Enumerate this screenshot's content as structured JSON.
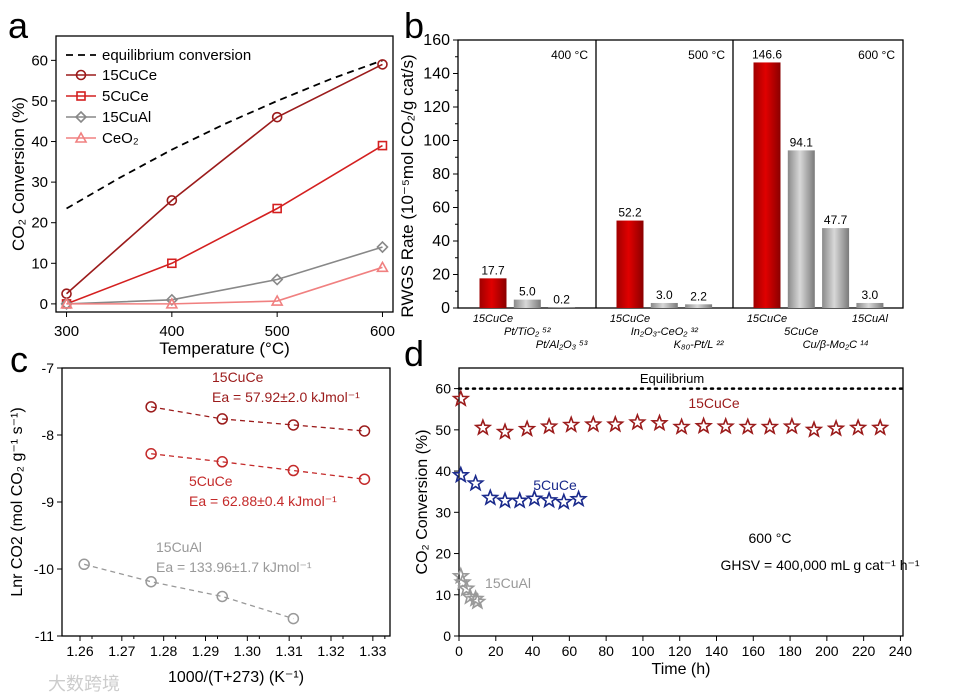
{
  "colors": {
    "dark_red": "#9b1b1b",
    "red": "#d42020",
    "gray": "#888888",
    "pink": "#f08080",
    "blue": "#1a2a8c",
    "black": "#000000"
  },
  "watermark": "大数跨境",
  "chart_data": [
    {
      "panel": "a",
      "type": "line",
      "xlabel": "Temperature (°C)",
      "ylabel": "CO₂ Conversion (%)",
      "xlim": [
        290,
        610
      ],
      "ylim": [
        -2,
        66
      ],
      "xticks": [
        300,
        400,
        500,
        600
      ],
      "yticks": [
        0,
        10,
        20,
        30,
        40,
        50,
        60
      ],
      "legend_position": "top-left",
      "equilibrium": {
        "name": "equilibrium conversion",
        "x": [
          300,
          350,
          400,
          450,
          500,
          550,
          600
        ],
        "y": [
          23.5,
          31,
          38,
          44.3,
          50,
          55.3,
          60
        ]
      },
      "series": [
        {
          "name": "15CuCe",
          "marker": "circle",
          "color": "#9b1b1b",
          "x": [
            300,
            400,
            500,
            600
          ],
          "y": [
            2.5,
            25.5,
            46,
            59
          ]
        },
        {
          "name": "5CuCe",
          "marker": "square",
          "color": "#d42020",
          "x": [
            300,
            400,
            500,
            600
          ],
          "y": [
            0,
            10,
            23.5,
            39
          ]
        },
        {
          "name": "15CuAl",
          "marker": "diamond",
          "color": "#888888",
          "x": [
            300,
            400,
            500,
            600
          ],
          "y": [
            0,
            1,
            6,
            14
          ]
        },
        {
          "name": "CeO₂",
          "marker": "triangle",
          "color": "#f08080",
          "x": [
            300,
            400,
            500,
            600
          ],
          "y": [
            0,
            0,
            0.7,
            9
          ]
        }
      ]
    },
    {
      "panel": "b",
      "type": "bar",
      "ylabel": "RWGS Rate (10⁻⁵mol CO₂/g cat/s)",
      "ylim": [
        0,
        160
      ],
      "yticks": [
        0,
        20,
        40,
        60,
        80,
        100,
        120,
        140,
        160
      ],
      "groups": [
        {
          "label": "400 °C",
          "bars": [
            {
              "category": "15CuCe",
              "value": 17.7,
              "label": "17.7",
              "highlight": true
            },
            {
              "category": "Pt/TiO₂ ⁵²",
              "value": 5.0,
              "label": "5.0",
              "highlight": false
            },
            {
              "category": "Pt/Al₂O₃ ⁵³",
              "value": 0.2,
              "label": "0.2",
              "highlight": false
            }
          ]
        },
        {
          "label": "500 °C",
          "bars": [
            {
              "category": "15CuCe",
              "value": 52.2,
              "label": "52.2",
              "highlight": true
            },
            {
              "category": "In₂O₃-CeO₂ ³²",
              "value": 3.0,
              "label": "3.0",
              "highlight": false
            },
            {
              "category": "K₈₀-Pt/L ²²",
              "value": 2.2,
              "label": "2.2",
              "highlight": false
            }
          ]
        },
        {
          "label": "600 °C",
          "bars": [
            {
              "category": "15CuCe",
              "value": 146.6,
              "label": "146.6",
              "highlight": true
            },
            {
              "category": "5CuCe",
              "value": 94.1,
              "label": "94.1",
              "highlight": false
            },
            {
              "category": "Cu/β-Mo₂C ¹⁴",
              "value": 47.7,
              "label": "47.7",
              "highlight": false
            },
            {
              "category": "15CuAl",
              "value": 3.0,
              "label": "3.0",
              "highlight": false
            }
          ]
        }
      ]
    },
    {
      "panel": "c",
      "type": "scatter",
      "xlabel": "1000/(T+273) (K⁻¹)",
      "ylabel": "Lnr CO2 (mol CO₂ g⁻¹ s⁻¹)",
      "xlim": [
        1.2557,
        1.3341
      ],
      "ylim": [
        -11,
        -7
      ],
      "xticks": [
        "1.26",
        "1.27",
        "1.28",
        "1.29",
        "1.30",
        "1.31",
        "1.32",
        "1.33"
      ],
      "yticks": [
        -7,
        -8,
        -9,
        -10,
        -11
      ],
      "series": [
        {
          "name": "15CuCe",
          "annotation": "Ea = 57.92±2.0 kJmol⁻¹",
          "color": "#9b1b1b",
          "x": [
            1.277,
            1.294,
            1.311,
            1.328
          ],
          "y": [
            -7.58,
            -7.76,
            -7.85,
            -7.94
          ]
        },
        {
          "name": "5CuCe",
          "annotation": "Ea = 62.88±0.4 kJmol⁻¹",
          "color": "#c42a2a",
          "x": [
            1.277,
            1.294,
            1.311,
            1.328
          ],
          "y": [
            -8.28,
            -8.4,
            -8.53,
            -8.66
          ]
        },
        {
          "name": "15CuAl",
          "annotation": "Ea = 133.96±1.7 kJmol⁻¹",
          "color": "#999999",
          "x": [
            1.261,
            1.277,
            1.294,
            1.311
          ],
          "y": [
            -9.93,
            -10.19,
            -10.41,
            -10.74
          ]
        }
      ]
    },
    {
      "panel": "d",
      "type": "scatter",
      "xlabel": "Time (h)",
      "ylabel": "CO₂ Conversion (%)",
      "xlim": [
        0,
        241.4
      ],
      "ylim": [
        0,
        65
      ],
      "xticks": [
        0,
        20,
        40,
        60,
        80,
        100,
        120,
        140,
        160,
        180,
        200,
        220,
        240
      ],
      "yticks": [
        0,
        10,
        20,
        30,
        40,
        50,
        60
      ],
      "equilibrium": {
        "label": "Equilibrium",
        "y": 60
      },
      "conditions": [
        "600 °C",
        "GHSV = 400,000 mL g cat⁻¹ h⁻¹"
      ],
      "series": [
        {
          "name": "15CuCe",
          "color": "#9b1b1b",
          "x": [
            1,
            13,
            25,
            37,
            49,
            61,
            73,
            85,
            97,
            109,
            121,
            133,
            145,
            157,
            169,
            181,
            193,
            205,
            217,
            229
          ],
          "y": [
            57.5,
            50.5,
            49.5,
            50.2,
            50.8,
            51.2,
            51.3,
            51.3,
            51.8,
            51.6,
            50.7,
            50.9,
            50.8,
            50.7,
            50.7,
            50.8,
            50.0,
            50.3,
            50.5,
            50.5
          ]
        },
        {
          "name": "5CuCe",
          "color": "#1a2a8c",
          "x": [
            1,
            9,
            17,
            25,
            33,
            41,
            49,
            57,
            65
          ],
          "y": [
            39,
            37,
            33.5,
            32.8,
            32.8,
            33.3,
            32.9,
            32.5,
            33.2
          ]
        },
        {
          "name": "15CuAl",
          "color": "#999999",
          "x": [
            1,
            2,
            4,
            6,
            9,
            10
          ],
          "y": [
            14.5,
            13,
            11.5,
            9.5,
            9,
            8.3
          ]
        }
      ]
    }
  ],
  "panel_letters": [
    "a",
    "b",
    "c",
    "d"
  ]
}
